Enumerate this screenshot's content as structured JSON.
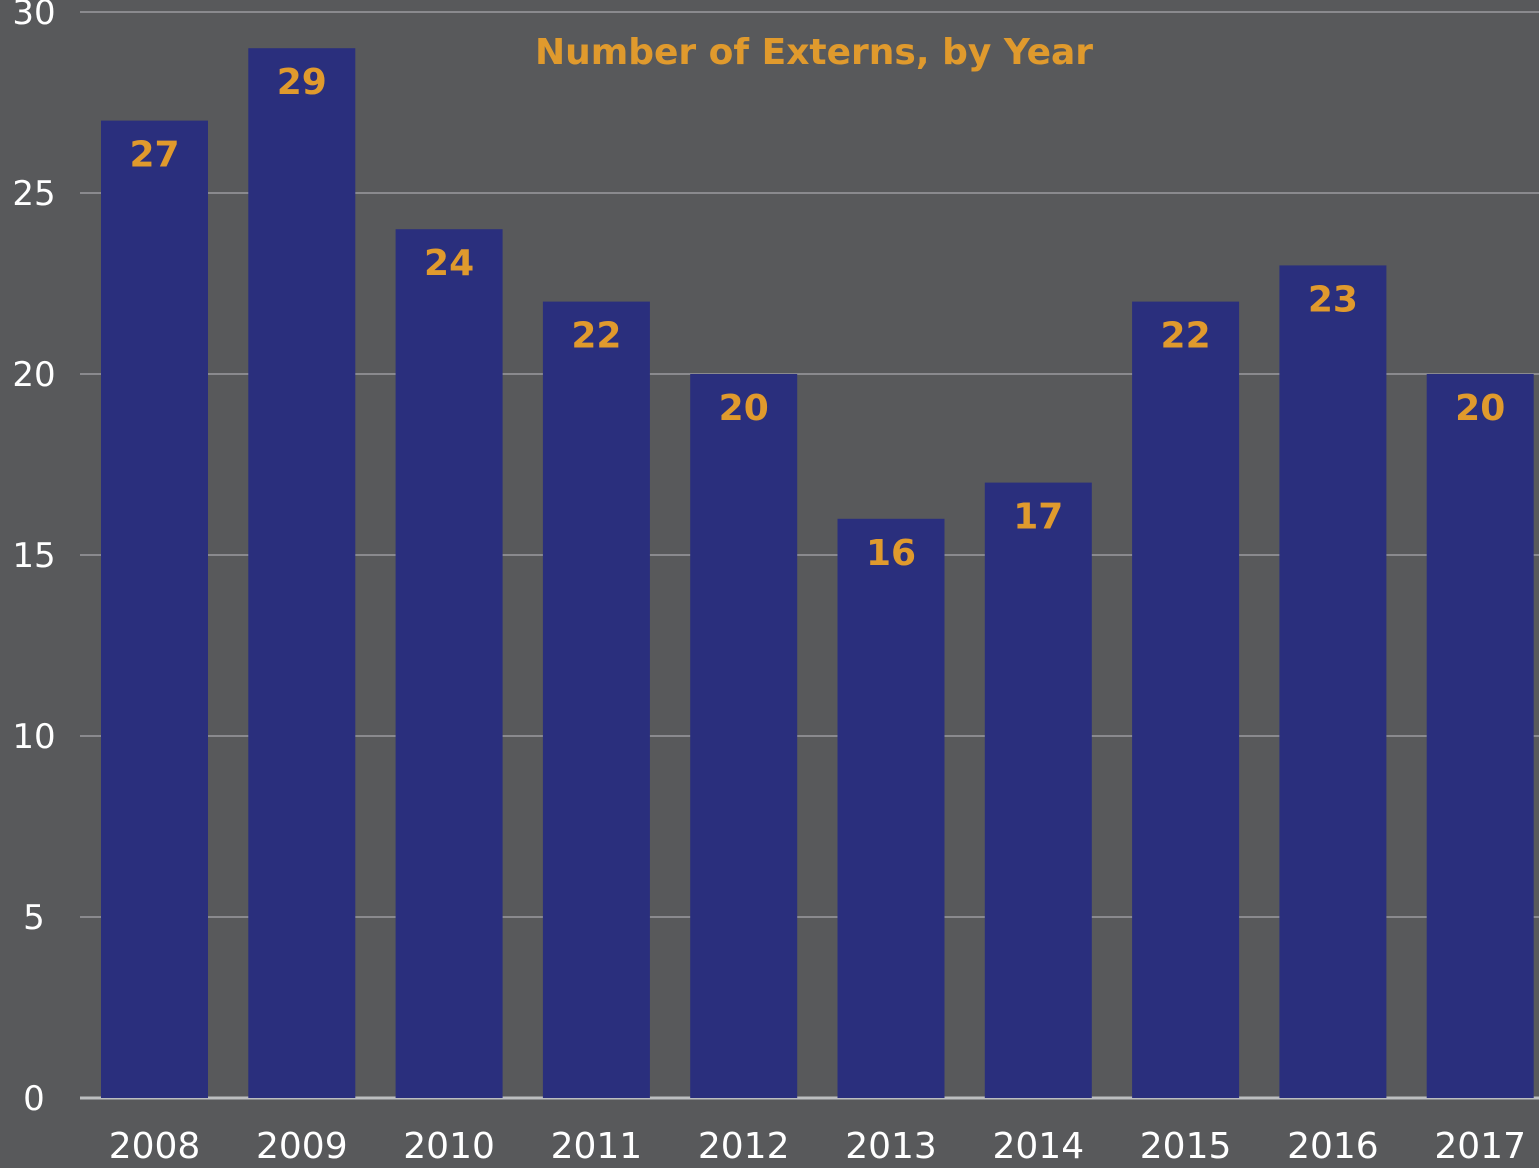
{
  "chart_data": {
    "type": "bar",
    "title": "Number of Externs, by Year",
    "categories": [
      "2008",
      "2009",
      "2010",
      "2011",
      "2012",
      "2013",
      "2014",
      "2015",
      "2016",
      "2017"
    ],
    "values": [
      27,
      29,
      24,
      22,
      20,
      16,
      17,
      22,
      23,
      20
    ],
    "data_labels": [
      "27",
      "29",
      "24",
      "22",
      "20",
      "16",
      "17",
      "22",
      "23",
      "20"
    ],
    "ylim": [
      0,
      30
    ],
    "yticks": [
      0,
      5,
      10,
      15,
      20,
      25,
      30
    ],
    "ytick_labels": [
      "0",
      "5",
      "10",
      "15",
      "20",
      "25",
      "30"
    ],
    "xlabel": "",
    "ylabel": "",
    "grid": true,
    "legend": "none",
    "colors": {
      "background": "#58595b",
      "bar": "#2a2f7d",
      "accent_text": "#e09a2d",
      "gridline": "#a7a9ac",
      "axis_text": "#ffffff"
    }
  }
}
